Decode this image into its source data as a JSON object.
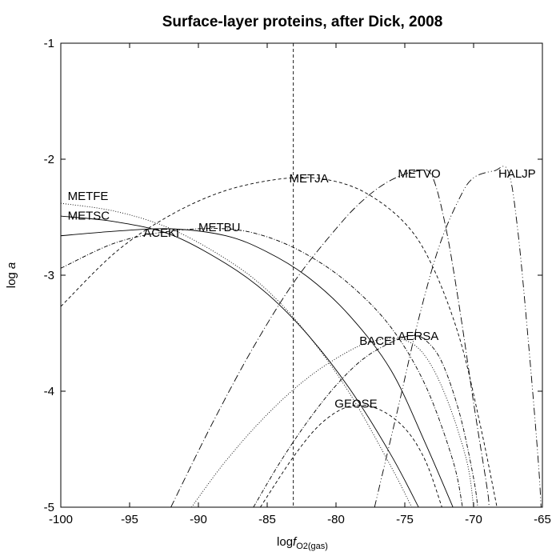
{
  "chart_data": {
    "type": "line",
    "title": "Surface-layer proteins, after Dick, 2008",
    "xlabel": {
      "prefix": "log",
      "italic": "f",
      "subscript": "O2(gas)"
    },
    "ylabel": {
      "prefix": "log ",
      "italic": "a"
    },
    "xlim": [
      -100,
      -65
    ],
    "ylim": [
      -5,
      -1
    ],
    "x_ticks": [
      -100,
      -95,
      -90,
      -85,
      -80,
      -75,
      -70,
      -65
    ],
    "y_ticks": [
      -5,
      -4,
      -3,
      -2,
      -1
    ],
    "x_tick_labels": [
      "-100",
      "-95",
      "-90",
      "-85",
      "-80",
      "-75",
      "-70",
      "-65"
    ],
    "y_tick_labels": [
      "-5",
      "-4",
      "-3",
      "-2",
      "-1"
    ],
    "grid": false,
    "reference_line": {
      "x": -83.1,
      "style": "dashed"
    },
    "series": [
      {
        "name": "METFE",
        "dash": "1 2",
        "label_at": [
          -99.5,
          -2.35
        ],
        "points": [
          [
            -100,
            -2.38
          ],
          [
            -96,
            -2.45
          ],
          [
            -92,
            -2.6
          ],
          [
            -88,
            -2.86
          ],
          [
            -85,
            -3.13
          ],
          [
            -82,
            -3.52
          ],
          [
            -79,
            -4.02
          ],
          [
            -76,
            -4.65
          ],
          [
            -74.5,
            -5
          ]
        ]
      },
      {
        "name": "METSC",
        "dash": "",
        "label_at": [
          -99.5,
          -2.52
        ],
        "points": [
          [
            -100,
            -2.49
          ],
          [
            -96,
            -2.54
          ],
          [
            -92,
            -2.65
          ],
          [
            -88,
            -2.9
          ],
          [
            -85,
            -3.16
          ],
          [
            -82,
            -3.52
          ],
          [
            -79,
            -3.98
          ],
          [
            -76,
            -4.55
          ],
          [
            -74,
            -5
          ]
        ]
      },
      {
        "name": "ACEKI",
        "dash": "",
        "label_at": [
          -94,
          -2.67
        ],
        "points": [
          [
            -100,
            -2.66
          ],
          [
            -96,
            -2.62
          ],
          [
            -92,
            -2.6
          ],
          [
            -88,
            -2.66
          ],
          [
            -85,
            -2.8
          ],
          [
            -82,
            -3.02
          ],
          [
            -79,
            -3.35
          ],
          [
            -76,
            -3.82
          ],
          [
            -73.5,
            -4.45
          ],
          [
            -71.5,
            -5
          ]
        ]
      },
      {
        "name": "METBU",
        "dash": "5 2 1 2",
        "label_at": [
          -90,
          -2.62
        ],
        "points": [
          [
            -100,
            -2.94
          ],
          [
            -96,
            -2.72
          ],
          [
            -92,
            -2.62
          ],
          [
            -88,
            -2.6
          ],
          [
            -85,
            -2.67
          ],
          [
            -82,
            -2.83
          ],
          [
            -79,
            -3.08
          ],
          [
            -76,
            -3.45
          ],
          [
            -73.5,
            -3.95
          ],
          [
            -71.5,
            -4.6
          ],
          [
            -70.8,
            -5
          ]
        ]
      },
      {
        "name": "METJA",
        "dash": "4 3",
        "label_at": [
          -83.4,
          -2.2
        ],
        "points": [
          [
            -100,
            -3.27
          ],
          [
            -96,
            -2.8
          ],
          [
            -92,
            -2.48
          ],
          [
            -88,
            -2.27
          ],
          [
            -84,
            -2.17
          ],
          [
            -81,
            -2.17
          ],
          [
            -78,
            -2.28
          ],
          [
            -75,
            -2.55
          ],
          [
            -73,
            -2.92
          ],
          [
            -71,
            -3.55
          ],
          [
            -69.5,
            -4.3
          ],
          [
            -68.3,
            -5
          ]
        ]
      },
      {
        "name": "METVO",
        "dash": "9 3 1 3",
        "label_at": [
          -75.5,
          -2.16
        ],
        "points": [
          [
            -92,
            -5
          ],
          [
            -89,
            -4.28
          ],
          [
            -86,
            -3.62
          ],
          [
            -83,
            -3.05
          ],
          [
            -80,
            -2.6
          ],
          [
            -78,
            -2.35
          ],
          [
            -76,
            -2.18
          ],
          [
            -74,
            -2.1
          ],
          [
            -73,
            -2.15
          ],
          [
            -72,
            -2.6
          ],
          [
            -71,
            -3.3
          ],
          [
            -70,
            -4.1
          ],
          [
            -69,
            -4.85
          ],
          [
            -68.9,
            -5
          ]
        ]
      },
      {
        "name": "HALJP",
        "dash": "9 3 1 3 1 3",
        "label_at": [
          -68.2,
          -2.16
        ],
        "points": [
          [
            -77.2,
            -5
          ],
          [
            -75.5,
            -4.15
          ],
          [
            -74,
            -3.38
          ],
          [
            -72.5,
            -2.75
          ],
          [
            -71,
            -2.33
          ],
          [
            -70,
            -2.16
          ],
          [
            -68.5,
            -2.1
          ],
          [
            -67.5,
            -2.1
          ],
          [
            -66.8,
            -2.6
          ],
          [
            -66,
            -3.6
          ],
          [
            -65.3,
            -4.6
          ],
          [
            -65.1,
            -5
          ]
        ]
      },
      {
        "name": "BACEI",
        "dash": "1 2",
        "label_at": [
          -78.3,
          -3.6
        ],
        "points": [
          [
            -90.5,
            -5
          ],
          [
            -88,
            -4.6
          ],
          [
            -85,
            -4.2
          ],
          [
            -82,
            -3.88
          ],
          [
            -79,
            -3.65
          ],
          [
            -77,
            -3.56
          ],
          [
            -75,
            -3.56
          ],
          [
            -73.5,
            -3.7
          ],
          [
            -72,
            -4.05
          ],
          [
            -70.5,
            -4.6
          ],
          [
            -70,
            -5
          ]
        ]
      },
      {
        "name": "AERSA",
        "dash": "5 2 1 2",
        "label_at": [
          -75.5,
          -3.56
        ],
        "points": [
          [
            -86,
            -5
          ],
          [
            -84,
            -4.6
          ],
          [
            -82,
            -4.25
          ],
          [
            -80,
            -3.95
          ],
          [
            -78,
            -3.72
          ],
          [
            -76,
            -3.58
          ],
          [
            -74.5,
            -3.52
          ],
          [
            -73.5,
            -3.56
          ],
          [
            -72.3,
            -3.75
          ],
          [
            -71,
            -4.2
          ],
          [
            -70,
            -4.75
          ],
          [
            -69.7,
            -5
          ]
        ]
      },
      {
        "name": "GEOSE",
        "dash": "4 3",
        "label_at": [
          -80.1,
          -4.14
        ],
        "points": [
          [
            -85.5,
            -5
          ],
          [
            -83,
            -4.55
          ],
          [
            -81,
            -4.27
          ],
          [
            -79,
            -4.13
          ],
          [
            -77,
            -4.15
          ],
          [
            -75,
            -4.32
          ],
          [
            -73.5,
            -4.6
          ],
          [
            -72.3,
            -5
          ]
        ]
      }
    ]
  }
}
